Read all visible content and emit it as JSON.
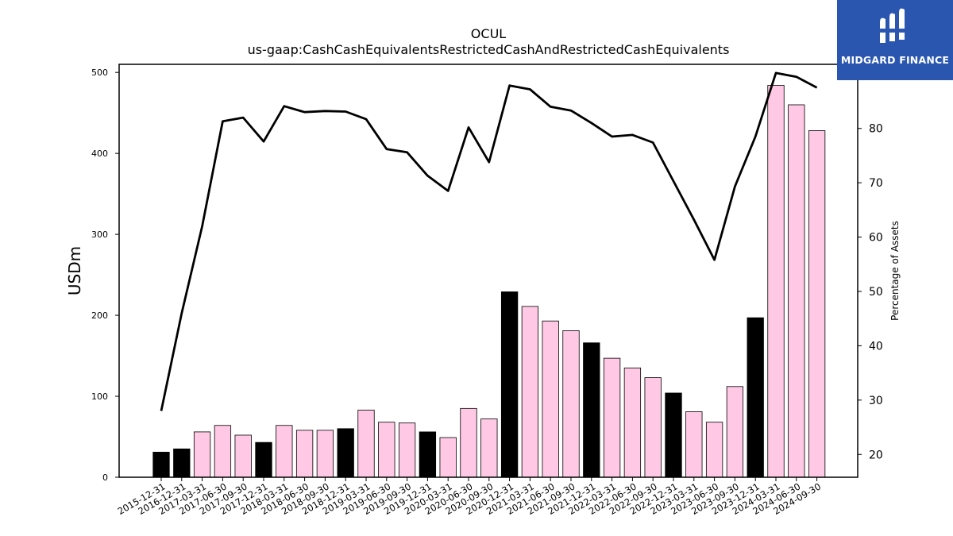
{
  "chart_data": {
    "type": "bar",
    "title": "OCUL",
    "subtitle": "us-gaap:CashCashEquivalentsRestrictedCashAndRestrictedCashEquivalents",
    "ylabel": "USDm",
    "y2label": "Percentage of Assets",
    "ylim": [
      0,
      510
    ],
    "y2lim": [
      15.8,
      91.8
    ],
    "yticks": [
      0,
      100,
      200,
      300,
      400,
      500
    ],
    "y2ticks": [
      20,
      30,
      40,
      50,
      60,
      70,
      80,
      90
    ],
    "grid": false,
    "colors": {
      "annual": "#000000",
      "quarterly": "#ffc8e4",
      "line": "#000000"
    },
    "categories": [
      "2015-12-31",
      "2016-12-31",
      "2017-03-31",
      "2017-06-30",
      "2017-09-30",
      "2017-12-31",
      "2018-03-31",
      "2018-06-30",
      "2018-09-30",
      "2018-12-31",
      "2019-03-31",
      "2019-06-30",
      "2019-09-30",
      "2019-12-31",
      "2020-03-31",
      "2020-06-30",
      "2020-09-30",
      "2020-12-31",
      "2021-03-31",
      "2021-06-30",
      "2021-09-30",
      "2021-12-31",
      "2022-03-31",
      "2022-06-30",
      "2022-09-30",
      "2022-12-31",
      "2023-03-31",
      "2023-06-30",
      "2023-09-30",
      "2023-12-31",
      "2024-03-31",
      "2024-06-30",
      "2024-09-30"
    ],
    "series": [
      {
        "kind": "bar",
        "values": [
          31,
          35,
          56,
          64,
          52,
          43,
          64,
          58,
          58,
          60,
          83,
          68,
          67,
          56,
          49,
          85,
          72,
          229,
          211,
          193,
          181,
          166,
          147,
          135,
          123,
          104,
          81,
          68,
          112,
          197,
          484,
          460,
          428
        ],
        "annual": [
          true,
          true,
          false,
          false,
          false,
          true,
          false,
          false,
          false,
          true,
          false,
          false,
          false,
          true,
          false,
          false,
          false,
          true,
          false,
          false,
          false,
          true,
          false,
          false,
          false,
          true,
          false,
          false,
          false,
          true,
          false,
          false,
          false
        ]
      },
      {
        "kind": "line",
        "axis": "right",
        "values": [
          28,
          46,
          62,
          81.3,
          82,
          77.6,
          84.1,
          83,
          83.2,
          83.1,
          81.7,
          76.2,
          75.6,
          71.3,
          68.5,
          80.2,
          73.8,
          87.9,
          87.2,
          84,
          83.3,
          81,
          78.5,
          78.8,
          77.4,
          70.3,
          63.2,
          55.8,
          69.3,
          78.5,
          90.2,
          89.5,
          87.5
        ]
      }
    ]
  },
  "logo": {
    "text": "MIDGARD FINANCE",
    "icon": "midgard-logo-icon"
  }
}
